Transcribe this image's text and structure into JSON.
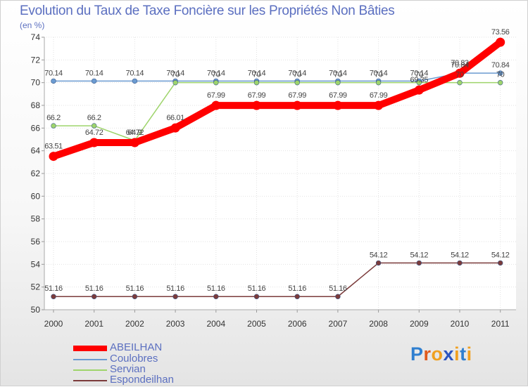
{
  "header": {
    "title": "Evolution du Taux de Taxe Foncière sur les Propriétés Non Bâties",
    "subtitle": "(en %)"
  },
  "brand": {
    "name": "Proxiti",
    "letters": [
      "P",
      "r",
      "o",
      "x",
      "i",
      "t",
      "i"
    ],
    "letter_colors": [
      "#2f7fd0",
      "#e05a1c",
      "#f0a020",
      "#2b55c0",
      "#f0a020",
      "#2f7fd0",
      "#f0a020"
    ]
  },
  "chart_data": {
    "type": "line",
    "title": "Evolution du Taux de Taxe Foncière sur les Propriétés Non Bâties",
    "ylabel": "(en %)",
    "xlabel": "",
    "x": [
      "2000",
      "2001",
      "2002",
      "2003",
      "2004",
      "2005",
      "2006",
      "2007",
      "2008",
      "2009",
      "2010",
      "2011"
    ],
    "ylim": [
      50,
      74
    ],
    "yticks": [
      "50",
      "52",
      "54",
      "56",
      "58",
      "60",
      "62",
      "64",
      "66",
      "68",
      "70",
      "72",
      "74"
    ],
    "grid": true,
    "legend_position": "bottom-left",
    "series": [
      {
        "name": "ABEILHAN",
        "color": "#ff0000",
        "values": [
          63.51,
          64.72,
          64.72,
          66.01,
          67.99,
          67.99,
          67.99,
          67.99,
          67.99,
          69.35,
          70.83,
          73.56
        ],
        "labels": [
          "63.51",
          "64.72",
          "64.72",
          "66.01",
          "67.99",
          "67.99",
          "67.99",
          "67.99",
          "67.99",
          "69.35",
          "70.83",
          "73.56"
        ]
      },
      {
        "name": "Coulobres",
        "color": "#6b9bd1",
        "values": [
          70.14,
          70.14,
          70.14,
          70.14,
          70.14,
          70.14,
          70.14,
          70.14,
          70.14,
          70.14,
          70.84,
          70.84
        ],
        "labels": [
          "70.14",
          "70.14",
          "70.14",
          "70.14",
          "70.14",
          "70.14",
          "70.14",
          "70.14",
          "70.14",
          "70.14",
          "70.84",
          "70.84"
        ]
      },
      {
        "name": "Servian",
        "color": "#9ed46b",
        "values": [
          66.2,
          66.2,
          64.9,
          70.0,
          70.0,
          70.0,
          70.0,
          70.0,
          70.0,
          70.0,
          70.0,
          70.0
        ],
        "labels": [
          "66.2",
          "66.2",
          "64.9",
          "70",
          "70",
          "70",
          "70",
          "70",
          "70",
          "70",
          "70",
          "70"
        ]
      },
      {
        "name": "Espondeilhan",
        "color": "#7b3b3b",
        "values": [
          51.16,
          51.16,
          51.16,
          51.16,
          51.16,
          51.16,
          51.16,
          51.16,
          54.12,
          54.12,
          54.12,
          54.12
        ],
        "labels": [
          "51.16",
          "51.16",
          "51.16",
          "51.16",
          "51.16",
          "51.16",
          "51.16",
          "51.16",
          "54.12",
          "54.12",
          "54.12",
          "54.12"
        ]
      }
    ]
  }
}
